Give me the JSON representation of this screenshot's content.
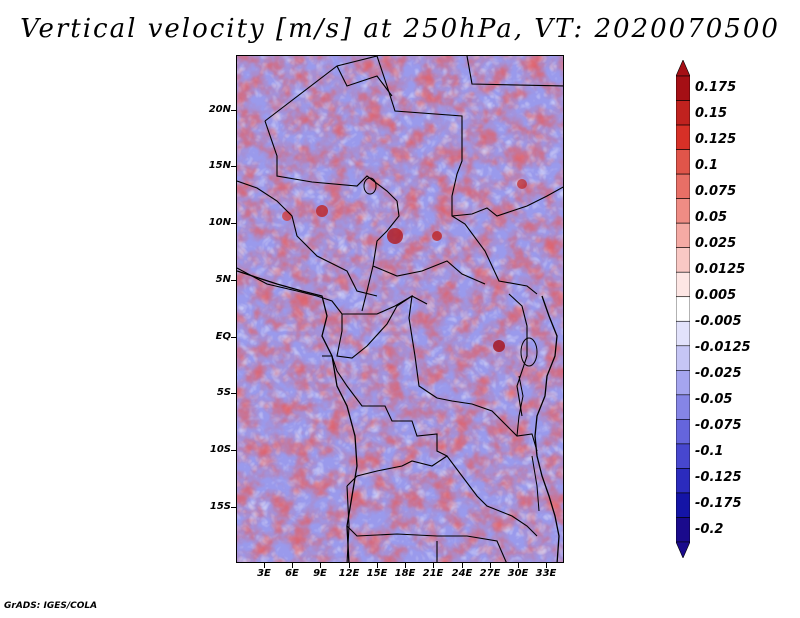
{
  "title": "Vertical velocity [m/s] at 250hPa, VT: 2020070500",
  "credit": "GrADS: IGES/COLA",
  "map": {
    "lat_labels": [
      "20N",
      "15N",
      "10N",
      "5N",
      "EQ",
      "5S",
      "10S",
      "15S"
    ],
    "lon_labels": [
      "3E",
      "6E",
      "9E",
      "12E",
      "15E",
      "18E",
      "21E",
      "24E",
      "27E",
      "30E",
      "33E"
    ],
    "lat_range": [
      -19.5,
      24.5
    ],
    "lon_range": [
      0.5,
      35.5
    ],
    "field": "vertical velocity",
    "units": "m/s",
    "level": "250hPa"
  },
  "colorbar": {
    "labels": [
      "0.175",
      "0.15",
      "0.125",
      "0.1",
      "0.075",
      "0.05",
      "0.025",
      "0.0125",
      "0.005",
      "-0.005",
      "-0.0125",
      "-0.025",
      "-0.05",
      "-0.075",
      "-0.1",
      "-0.125",
      "-0.175",
      "-0.2"
    ],
    "colors": [
      "#a50f15",
      "#c0221f",
      "#d73027",
      "#e0554a",
      "#e86f66",
      "#ef8c84",
      "#f5aaa4",
      "#f9c8c4",
      "#fde6e4",
      "#ffffff",
      "#e2e2fb",
      "#c6c6f5",
      "#a5a5ef",
      "#8585e6",
      "#6565dc",
      "#4747cf",
      "#2b2bbd",
      "#1414a6",
      "#1a0a8c"
    ],
    "top_arrow_color": "#a50f15",
    "bottom_arrow_color": "#1a0a8c"
  }
}
